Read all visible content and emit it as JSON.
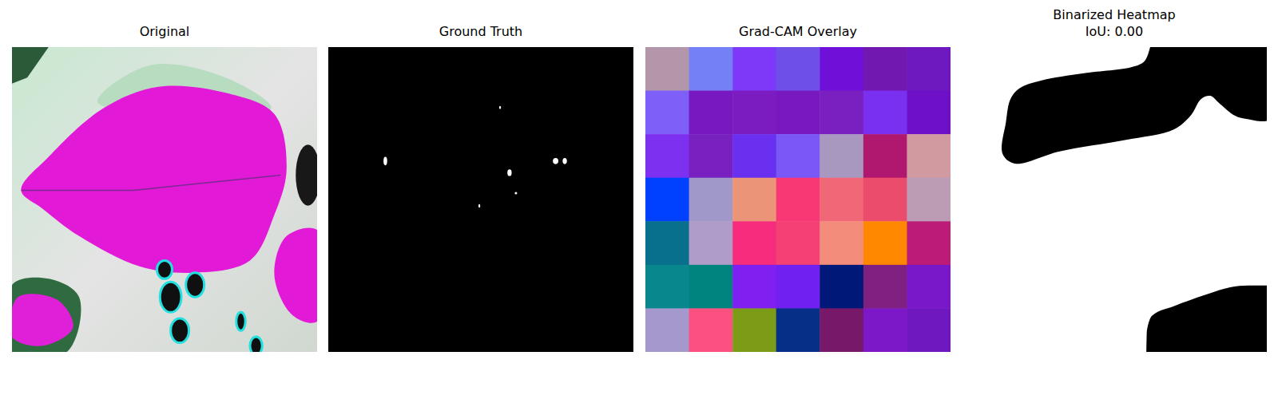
{
  "chart_data": [
    {
      "type": "image",
      "title": "Original"
    },
    {
      "type": "mask",
      "title": "Ground Truth"
    },
    {
      "type": "heatmap",
      "title": "Grad-CAM Overlay",
      "tick_labels": false,
      "cells": [
        [
          "#b496aa",
          "#7480f5",
          "#7d38f8",
          "#6e50e8",
          "#6f10d8",
          "#7118b0",
          "#6e18c0"
        ],
        [
          "#7e60f8",
          "#7818c0",
          "#7a1cc0",
          "#7a18c0",
          "#7a20c0",
          "#7a30f0",
          "#6e10c8"
        ],
        [
          "#7d30f0",
          "#7820c0",
          "#6a30f0",
          "#7a58f8",
          "#a898c0",
          "#b01870",
          "#d09aa0"
        ],
        [
          "#0040ff",
          "#a098c8",
          "#ec9478",
          "#f83874",
          "#f06878",
          "#ec4c6c",
          "#bc9cb4"
        ],
        [
          "#08708c",
          "#b09cc8",
          "#f82c7c",
          "#f44074",
          "#f48c7c",
          "#ff8800",
          "#bc1c78"
        ],
        [
          "#08888c",
          "#008480",
          "#8020f0",
          "#7020f0",
          "#001878",
          "#802080",
          "#7818c8"
        ],
        [
          "#a498cc",
          "#fc5080",
          "#7c9c18",
          "#063088",
          "#781868",
          "#7c18c8",
          "#7018c0"
        ]
      ]
    },
    {
      "type": "binary",
      "title": "Binarized Heatmap\nIoU: 0.00"
    }
  ]
}
